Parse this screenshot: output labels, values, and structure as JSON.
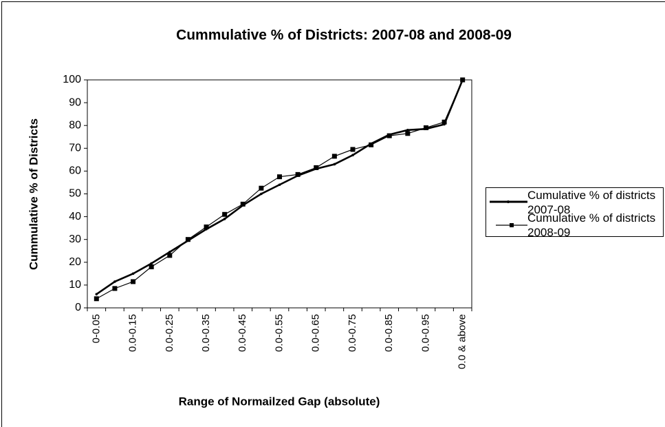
{
  "chart_data": {
    "type": "line",
    "title": "Cummulative % of Districts: 2007-08 and 2008-09",
    "x_label": "Range of Normailzed Gap (absolute)",
    "y_label": "Cummulative % of Districts",
    "categories": [
      "0-0.05",
      null,
      "0.0-0.15",
      null,
      "0.0-0.25",
      null,
      "0.0-0.35",
      null,
      "0.0-0.45",
      null,
      "0.0-0.55",
      null,
      "0.0-0.65",
      null,
      "0.0-0.75",
      null,
      "0.0-0.85",
      null,
      "0.0-0.95",
      null,
      "0.0 & above"
    ],
    "series": [
      {
        "name": "Cumulative % of districts 2007-08",
        "color": "#000000",
        "values": [
          6,
          11.5,
          15,
          19.5,
          24.5,
          29.5,
          34.5,
          39,
          45,
          50,
          54,
          58,
          61,
          63,
          67,
          72,
          76,
          78,
          78.5,
          80.5,
          100
        ]
      },
      {
        "name": "Cumulative % of districts 2008-09",
        "color": "#000000",
        "values": [
          4,
          8.5,
          11.5,
          18,
          23,
          30,
          35.5,
          41,
          45.5,
          52.5,
          57.5,
          58.5,
          61.5,
          66.5,
          69.5,
          71.5,
          75.5,
          76.5,
          79,
          81.5,
          100
        ]
      }
    ],
    "ylim": [
      0,
      100
    ],
    "yticks": [
      0,
      10,
      20,
      30,
      40,
      50,
      60,
      70,
      80,
      90,
      100
    ],
    "grid": false
  }
}
